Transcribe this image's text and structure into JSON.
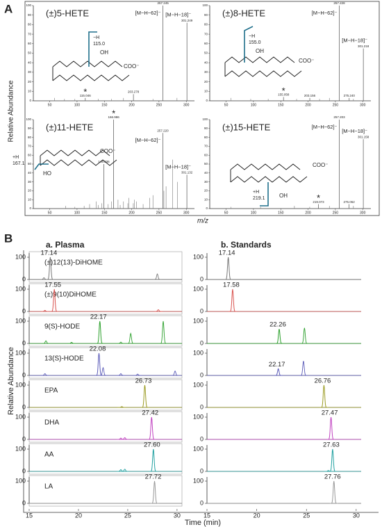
{
  "panel_a": {
    "label": "A",
    "y_label": "Relative Abundance",
    "x_label": "m/z",
    "spectra": [
      {
        "title": "(±)5-HETE",
        "xlim": [
          20,
          315
        ],
        "xticks": [
          50,
          100,
          150,
          200,
          250,
          300
        ],
        "ylim": [
          0,
          100
        ],
        "yticks": [
          0,
          10,
          20,
          30,
          40,
          50,
          60,
          70,
          80,
          90,
          100
        ],
        "fragment_peak": {
          "mz": 115.046,
          "abundance": 3,
          "star": "*"
        },
        "m62_peak": {
          "mz": 257.245,
          "abundance": 100,
          "ion": "[M−H−62]⁻"
        },
        "m18_peak": {
          "mz": 301.249,
          "abundance": 82,
          "ion": "[M−H−18]⁻"
        },
        "peaks": [
          {
            "mz": 203.278,
            "abundance": 7
          }
        ],
        "noise": {
          "mz": [
            59,
            77,
            96,
            139,
            163,
            185,
            239,
            283
          ],
          "abundance": [
            3,
            2,
            2,
            2,
            2,
            3,
            2,
            3
          ]
        },
        "structure": {
          "hydroxyl": "OH",
          "carboxylate": "COO⁻",
          "fragment_ion": "−H",
          "fragment_mz": "115.0"
        }
      },
      {
        "title": "(±)8-HETE",
        "xlim": [
          20,
          315
        ],
        "xticks": [
          50,
          100,
          150,
          200,
          250,
          300
        ],
        "ylim": [
          0,
          100
        ],
        "yticks": [
          0,
          10,
          20,
          30,
          40,
          50,
          60,
          70,
          80,
          90,
          100
        ],
        "fragment_peak": {
          "mz": 155.058,
          "abundance": 4,
          "star": "*"
        },
        "m62_peak": {
          "mz": 257.228,
          "abundance": 100,
          "ion": "[M−H−62]⁻"
        },
        "m18_peak": {
          "mz": 301.218,
          "abundance": 55,
          "ion": "[M−H−18]⁻"
        },
        "peaks": [
          {
            "mz": 203.156,
            "abundance": 3
          },
          {
            "mz": 275.24,
            "abundance": 3,
            "label": "275.240"
          }
        ],
        "noise": {
          "mz": [
            59,
            95,
            127,
            179,
            221,
            239,
            283
          ],
          "abundance": [
            3,
            2,
            2,
            2,
            2,
            3,
            2
          ]
        },
        "structure": {
          "hydroxyl": "OH",
          "carboxylate": "COO⁻",
          "fragment_ion": "−H",
          "fragment_mz": "155.0"
        }
      },
      {
        "title": "(±)11-HETE",
        "xlim": [
          20,
          315
        ],
        "xticks": [
          50,
          100,
          150,
          200,
          250,
          300
        ],
        "ylim": [
          0,
          100
        ],
        "yticks": [
          0,
          10,
          20,
          30,
          40,
          50,
          60,
          70,
          80,
          90,
          100
        ],
        "fragment_peak": {
          "mz": 166.986,
          "abundance": 100,
          "star": "*"
        },
        "m62_peak": {
          "mz": 257.22,
          "abundance": 85,
          "ion": "[M−H−62]⁻",
          "label": "257.220"
        },
        "m18_peak": {
          "mz": 301.132,
          "abundance": 38,
          "ion": "[M−H−18]⁻"
        },
        "peaks": [
          {
            "mz": 149.036,
            "abundance": 50
          }
        ],
        "noise": {
          "mz": [
            79,
            96,
            113,
            123,
            135,
            139,
            145,
            157,
            163,
            175,
            179,
            185,
            193,
            195,
            203,
            205,
            209,
            221,
            233,
            239,
            259,
            263,
            275,
            284
          ],
          "abundance": [
            3,
            2,
            3,
            5,
            8,
            4,
            6,
            5,
            8,
            10,
            4,
            8,
            6,
            12,
            6,
            10,
            8,
            5,
            12,
            15,
            20,
            25,
            55,
            30
          ]
        },
        "structure": {
          "hydroxyl": "HO",
          "carboxylate": "COO⁻",
          "fragment_ion": "+H",
          "fragment_mz": "167.1"
        }
      },
      {
        "title": "(±)15-HETE",
        "xlim": [
          20,
          315
        ],
        "xticks": [
          50,
          100,
          150,
          200,
          250,
          300
        ],
        "ylim": [
          0,
          100
        ],
        "yticks": [
          0,
          10,
          20,
          30,
          40,
          50,
          60,
          70,
          80,
          90,
          100
        ],
        "fragment_peak": {
          "mz": 219.073,
          "abundance": 5,
          "star": "*"
        },
        "m62_peak": {
          "mz": 257.203,
          "abundance": 100,
          "ion": "[M−H−62]⁻"
        },
        "m18_peak": {
          "mz": 301.158,
          "abundance": 78,
          "ion": "[M−H−18]⁻"
        },
        "peaks": [
          {
            "mz": 275.062,
            "abundance": 5
          }
        ],
        "noise": {
          "mz": [
            59,
            113,
            175,
            203,
            239,
            283
          ],
          "abundance": [
            2,
            2,
            3,
            2,
            3,
            3
          ]
        },
        "structure": {
          "hydroxyl": "OH",
          "carboxylate": "COO⁻",
          "fragment_ion": "+H",
          "fragment_mz": "219.1"
        }
      }
    ]
  },
  "panel_b": {
    "label": "B",
    "y_label": "Relative Abundance",
    "x_label": "Time (min)",
    "xlim": [
      15,
      30.5
    ],
    "xticks": [
      15,
      20,
      25,
      30
    ],
    "ylim": [
      0,
      100
    ],
    "yticks": [
      0,
      100
    ],
    "columns": [
      {
        "title": "a. Plasma",
        "traces": [
          {
            "name": "(±)12(13)-DiHOME",
            "color": "#777777",
            "labeled_peaks": [
              {
                "time": 17.14,
                "height": 100,
                "label": "17.14"
              }
            ],
            "other_peaks": {
              "times": [
                16.5,
                28.0
              ],
              "heights": [
                8,
                25
              ]
            }
          },
          {
            "name": "(±)9(10)DiHOME",
            "color": "#d9534f",
            "labeled_peaks": [
              {
                "time": 17.55,
                "height": 100,
                "label": "17.55"
              }
            ],
            "other_peaks": {
              "times": [
                16.6,
                28.1
              ],
              "heights": [
                5,
                8
              ]
            }
          },
          {
            "name": "9(S)-HODE",
            "color": "#2ca02c",
            "labeled_peaks": [
              {
                "time": 22.17,
                "height": 100,
                "label": "22.17"
              }
            ],
            "other_peaks": {
              "times": [
                16.7,
                19.3,
                24.3,
                25.3,
                28.6
              ],
              "heights": [
                12,
                5,
                6,
                45,
                100
              ]
            }
          },
          {
            "name": "13(S)-HODE",
            "color": "#5a5ab8",
            "labeled_peaks": [
              {
                "time": 22.08,
                "height": 100,
                "label": "22.08"
              }
            ],
            "other_peaks": {
              "times": [
                16.6,
                22.5,
                24.3,
                26.0,
                29.8
              ],
              "heights": [
                8,
                35,
                8,
                6,
                20
              ]
            }
          },
          {
            "name": "EPA",
            "color": "#9a9a20",
            "labeled_peaks": [
              {
                "time": 26.73,
                "height": 100,
                "label": "26.73"
              }
            ],
            "other_peaks": {
              "times": [
                24.4
              ],
              "heights": [
                4
              ]
            }
          },
          {
            "name": "DHA",
            "color": "#c040c0",
            "labeled_peaks": [
              {
                "time": 27.42,
                "height": 100,
                "label": "27.42"
              }
            ],
            "other_peaks": {
              "times": [
                24.3,
                24.7
              ],
              "heights": [
                6,
                8
              ]
            }
          },
          {
            "name": "AA",
            "color": "#20a0a0",
            "labeled_peaks": [
              {
                "time": 27.6,
                "height": 100,
                "label": "27.60"
              }
            ],
            "other_peaks": {
              "times": [
                24.3,
                24.7
              ],
              "heights": [
                8,
                10
              ]
            }
          },
          {
            "name": "LA",
            "color": "#999999",
            "labeled_peaks": [
              {
                "time": 27.72,
                "height": 100,
                "label": "27.72"
              }
            ],
            "other_peaks": {
              "times": [],
              "heights": []
            }
          }
        ]
      },
      {
        "title": "b. Standards",
        "traces": [
          {
            "color": "#777777",
            "labeled_peaks": [
              {
                "time": 17.14,
                "height": 100,
                "label": "17.14"
              }
            ],
            "other_peaks": {
              "times": [],
              "heights": []
            }
          },
          {
            "color": "#d9534f",
            "labeled_peaks": [
              {
                "time": 17.58,
                "height": 100,
                "label": "17.58"
              }
            ],
            "other_peaks": {
              "times": [],
              "heights": []
            }
          },
          {
            "color": "#2ca02c",
            "labeled_peaks": [
              {
                "time": 22.26,
                "height": 65,
                "label": "22.26"
              }
            ],
            "other_peaks": {
              "times": [
                24.8
              ],
              "heights": [
                70
              ]
            }
          },
          {
            "color": "#5a5ab8",
            "labeled_peaks": [
              {
                "time": 22.17,
                "height": 30,
                "label": "22.17"
              }
            ],
            "other_peaks": {
              "times": [
                24.7
              ],
              "heights": [
                65
              ]
            }
          },
          {
            "color": "#9a9a20",
            "labeled_peaks": [
              {
                "time": 26.76,
                "height": 100,
                "label": "26.76"
              }
            ],
            "other_peaks": {
              "times": [],
              "heights": []
            }
          },
          {
            "color": "#c040c0",
            "labeled_peaks": [
              {
                "time": 27.47,
                "height": 100,
                "label": "27.47"
              }
            ],
            "other_peaks": {
              "times": [],
              "heights": []
            }
          },
          {
            "color": "#20a0a0",
            "labeled_peaks": [
              {
                "time": 27.63,
                "height": 100,
                "label": "27.63"
              }
            ],
            "other_peaks": {
              "times": [
                27.2
              ],
              "heights": [
                4
              ]
            }
          },
          {
            "color": "#999999",
            "labeled_peaks": [
              {
                "time": 27.76,
                "height": 100,
                "label": "27.76"
              }
            ],
            "other_peaks": {
              "times": [],
              "heights": []
            }
          }
        ]
      }
    ]
  }
}
